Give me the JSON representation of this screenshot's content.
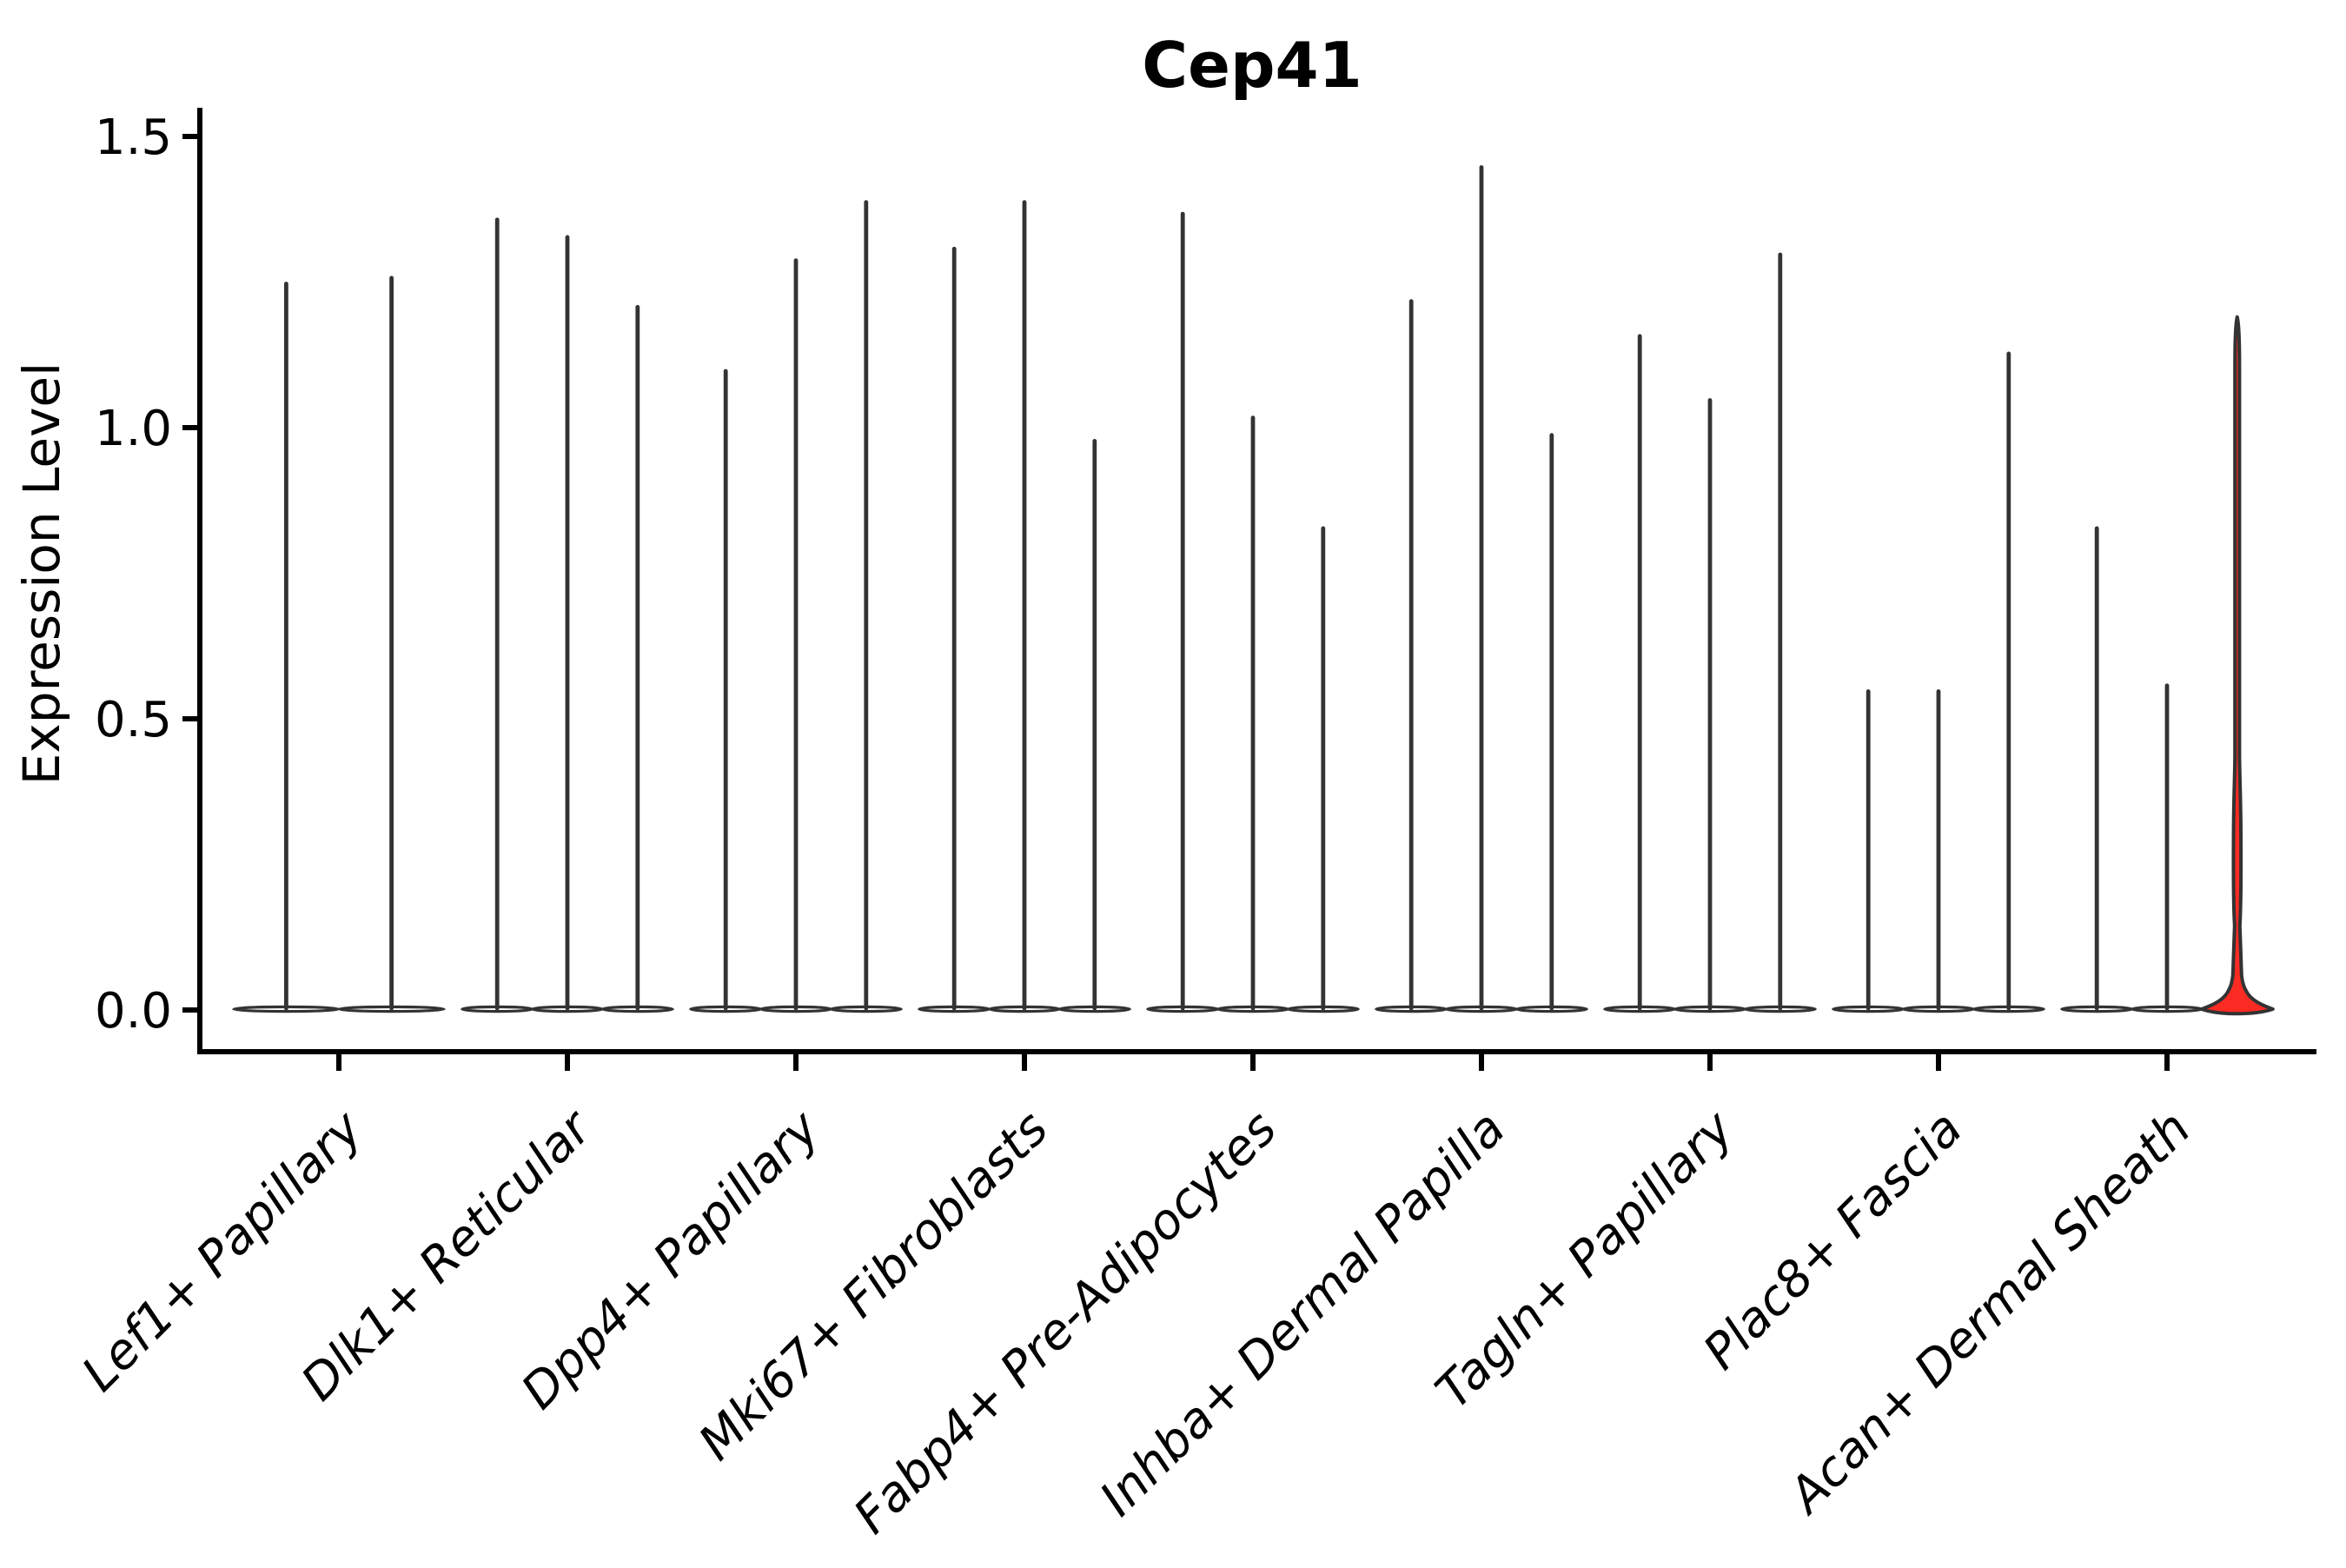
{
  "chart_data": {
    "type": "violin",
    "title": "Cep41",
    "ylabel": "Expression Level",
    "xlabel": "",
    "ylim": [
      0,
      1.5
    ],
    "yticks": [
      0.0,
      0.5,
      1.0,
      1.5
    ],
    "ytick_labels": [
      "0.0",
      "0.5",
      "1.0",
      "1.5"
    ],
    "grid": false,
    "legend": "none",
    "description": "Violin plot of Cep41 expression; each cell-type group contains 2-3 very thin violins flat at 0 with a narrow spike to the maximum expression; only the last violin of the last group is filled red with a visible density bulge near 0.",
    "groups": [
      {
        "label": "Lef1+ Papillary",
        "violin_max": [
          1.25,
          1.26
        ]
      },
      {
        "label": "Dlk1+ Reticular",
        "violin_max": [
          1.36,
          1.33,
          1.21
        ]
      },
      {
        "label": "Dpp4+ Papillary",
        "violin_max": [
          1.1,
          1.29,
          1.39
        ]
      },
      {
        "label": "Mki67+ Fibroblasts",
        "violin_max": [
          1.31,
          1.39,
          0.98
        ]
      },
      {
        "label": "Fabp4+ Pre-Adipocytes",
        "violin_max": [
          1.37,
          1.02,
          0.83
        ]
      },
      {
        "label": "Inhba+ Dermal Papilla",
        "violin_max": [
          1.22,
          1.45,
          0.99
        ]
      },
      {
        "label": "Tagln+ Papillary",
        "violin_max": [
          1.16,
          1.05,
          1.3
        ]
      },
      {
        "label": "Plac8+ Fascia",
        "violin_max": [
          0.55,
          0.55,
          1.13
        ]
      },
      {
        "label": "Acan+ Dermal Sheath",
        "violin_max": [
          0.83,
          0.56,
          1.19
        ],
        "highlight_index": 2
      }
    ],
    "colors": {
      "violin_outline": "#333333",
      "violin_fill": "#ffffff",
      "highlight_fill": "#fb2b24",
      "axis": "#000000",
      "text": "#000000"
    }
  }
}
